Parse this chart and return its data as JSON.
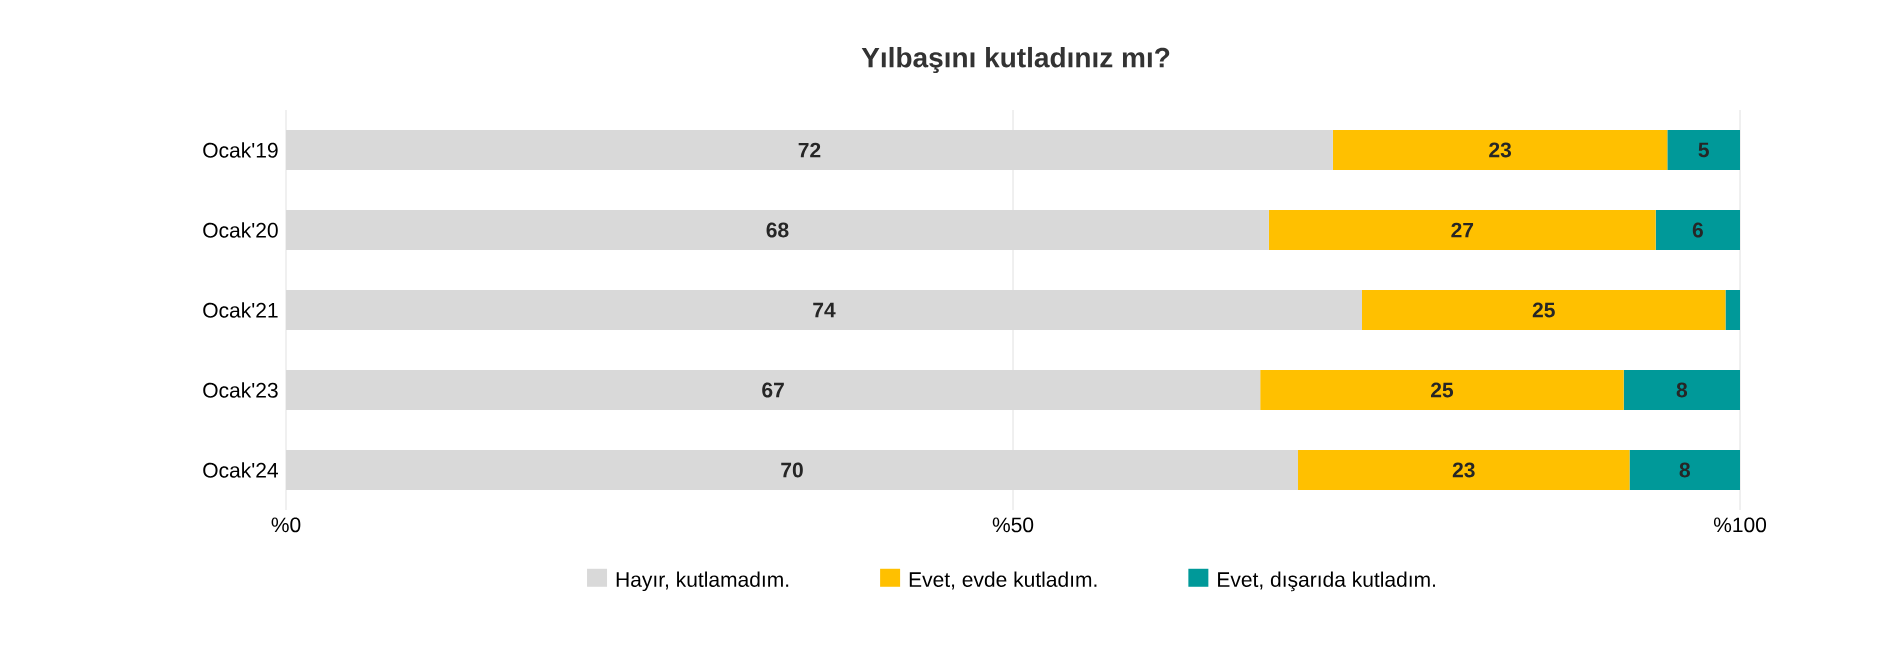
{
  "chart_data": {
    "type": "bar",
    "orientation": "horizontal",
    "stacked": true,
    "title": "Yılbaşını kutladınız mı?",
    "categories": [
      "Ocak'19",
      "Ocak'20",
      "Ocak'21",
      "Ocak'23",
      "Ocak'24"
    ],
    "series": [
      {
        "name": "Hayır, kutlamadım.",
        "color": "#d9d9d9",
        "values": [
          72,
          67.6,
          74,
          67,
          69.6
        ],
        "value_labels": [
          "72",
          "68",
          "74",
          "67",
          "70"
        ]
      },
      {
        "name": "Evet, evde kutladım.",
        "color": "#ffc000",
        "values": [
          23,
          26.6,
          25,
          25,
          22.8
        ],
        "value_labels": [
          "23",
          "27",
          "25",
          "25",
          "23"
        ]
      },
      {
        "name": "Evet, dışarıda kutladım.",
        "color": "#009999",
        "values": [
          5,
          5.8,
          1,
          8,
          7.6
        ],
        "value_labels": [
          "5",
          "6",
          null,
          "8",
          "8"
        ]
      }
    ],
    "xlim": [
      0,
      100
    ],
    "xticks": [
      {
        "value": 0,
        "label": "%0"
      },
      {
        "value": 50,
        "label": "%50"
      },
      {
        "value": 100,
        "label": "%100"
      }
    ],
    "grid": "x",
    "legend": "bottom"
  }
}
